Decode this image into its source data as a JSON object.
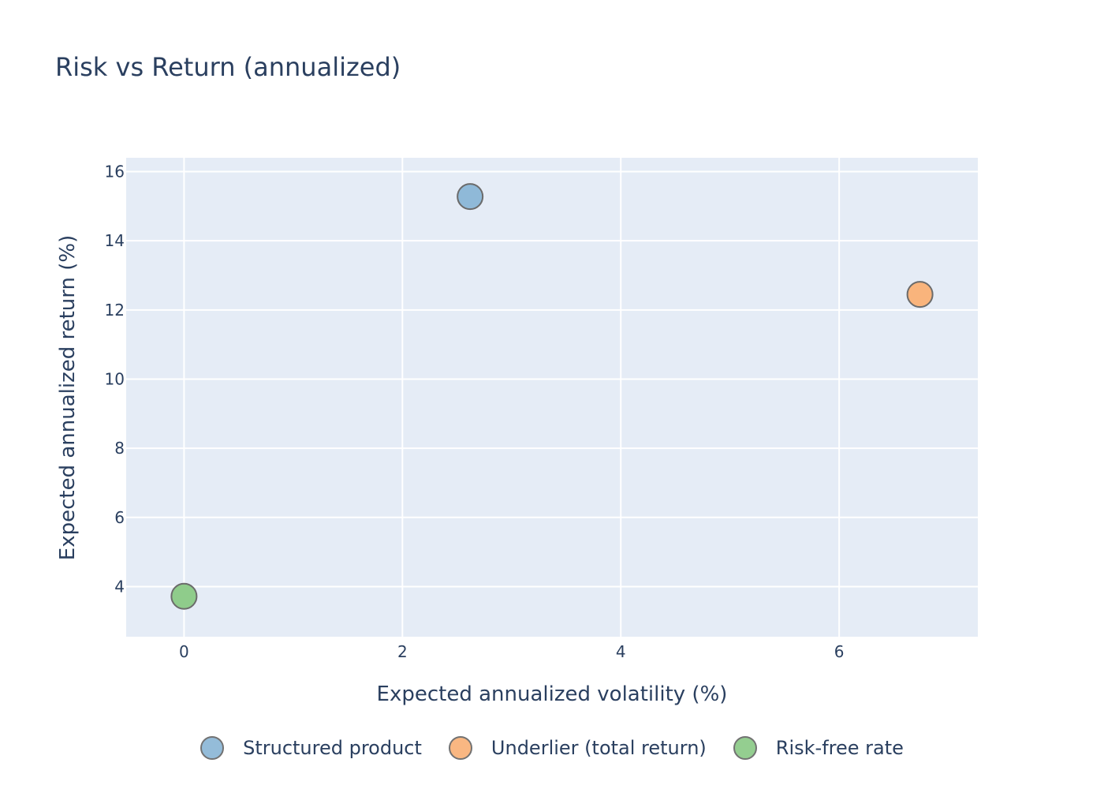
{
  "chart_data": {
    "type": "scatter",
    "title": "Risk vs Return (annualized)",
    "xlabel": "Expected annualized volatility (%)",
    "ylabel": "Expected annualized return (%)",
    "xlim": [
      -0.53,
      7.27
    ],
    "ylim": [
      2.55,
      16.4
    ],
    "xticks": [
      0,
      2,
      4,
      6
    ],
    "yticks": [
      4,
      6,
      8,
      10,
      12,
      14,
      16
    ],
    "grid": true,
    "legend_position": "bottom-center",
    "series": [
      {
        "name": "Structured product",
        "color": "#8fb9d8",
        "x": [
          2.62
        ],
        "y": [
          15.28
        ]
      },
      {
        "name": "Underlier (total return)",
        "color": "#f9b47c",
        "x": [
          6.74
        ],
        "y": [
          12.45
        ]
      },
      {
        "name": "Risk-free rate",
        "color": "#8fcc8b",
        "x": [
          0.0
        ],
        "y": [
          3.72
        ]
      }
    ]
  }
}
